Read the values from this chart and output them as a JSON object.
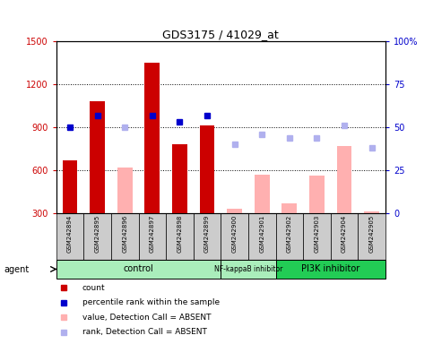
{
  "title": "GDS3175 / 41029_at",
  "samples": [
    "GSM242894",
    "GSM242895",
    "GSM242896",
    "GSM242897",
    "GSM242898",
    "GSM242899",
    "GSM242900",
    "GSM242901",
    "GSM242902",
    "GSM242903",
    "GSM242904",
    "GSM242905"
  ],
  "red_bars": [
    670,
    1080,
    null,
    1350,
    780,
    910,
    null,
    null,
    null,
    null,
    null,
    null
  ],
  "pink_bars": [
    null,
    null,
    620,
    null,
    null,
    null,
    330,
    570,
    370,
    560,
    770,
    310
  ],
  "blue_squares": [
    50,
    57,
    null,
    57,
    53,
    57,
    null,
    null,
    null,
    null,
    null,
    null
  ],
  "light_blue_squares": [
    null,
    null,
    50,
    null,
    null,
    null,
    40,
    46,
    44,
    44,
    51,
    38
  ],
  "ylim_left": [
    300,
    1500
  ],
  "ylim_right": [
    0,
    100
  ],
  "yticks_left": [
    300,
    600,
    900,
    1200,
    1500
  ],
  "yticks_right": [
    0,
    25,
    50,
    75,
    100
  ],
  "yticklabels_right": [
    "0",
    "25",
    "50",
    "75",
    "100%"
  ],
  "left_color": "#cc0000",
  "right_color": "#0000cc",
  "red_bar_color": "#cc0000",
  "pink_bar_color": "#ffb0b0",
  "blue_sq_color": "#0000cc",
  "light_blue_sq_color": "#b0b0ee",
  "groups": [
    {
      "label": "control",
      "start": 0,
      "end": 5,
      "color": "#aaeebb"
    },
    {
      "label": "NF-kappaB inhibitor",
      "start": 6,
      "end": 7,
      "color": "#aaeebb"
    },
    {
      "label": "PI3K inhibitor",
      "start": 8,
      "end": 11,
      "color": "#22cc55"
    }
  ],
  "legend_items": [
    {
      "color": "#cc0000",
      "label": "count"
    },
    {
      "color": "#0000cc",
      "label": "percentile rank within the sample"
    },
    {
      "color": "#ffb0b0",
      "label": "value, Detection Call = ABSENT"
    },
    {
      "color": "#b0b0ee",
      "label": "rank, Detection Call = ABSENT"
    }
  ]
}
